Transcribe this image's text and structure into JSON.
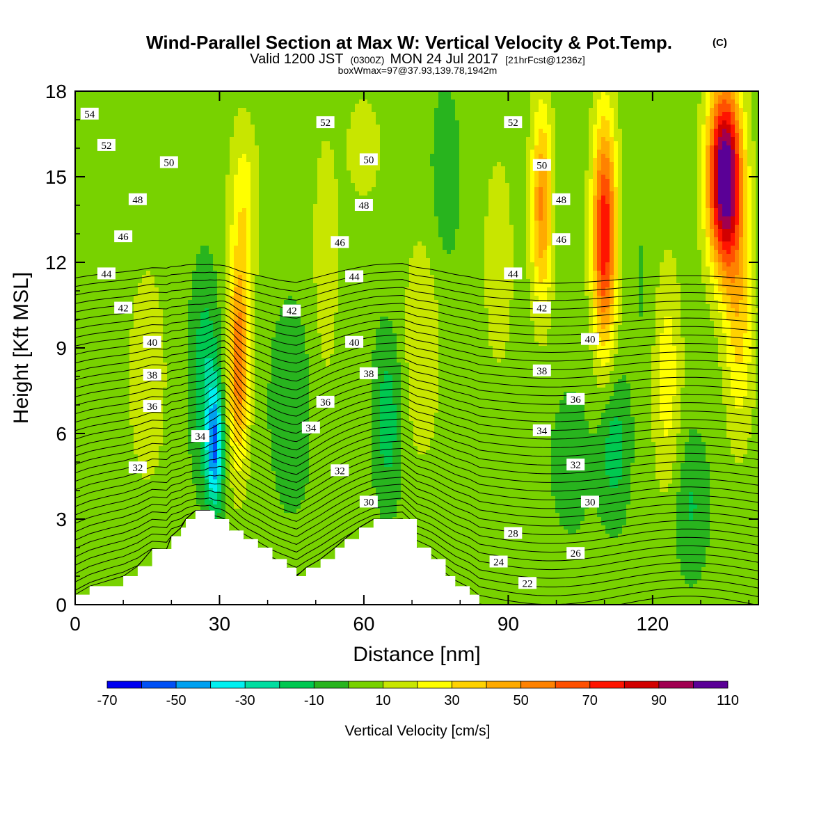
{
  "chart": {
    "title": "Wind-Parallel Section at Max W: Vertical Velocity & Pot.Temp.",
    "title_mark": "(C)",
    "subtitle": {
      "valid": "Valid 1200 JST",
      "utc": "(0300Z)",
      "date": "MON 24 Jul 2017",
      "forecast": "[21hrFcst@1236z]"
    },
    "box_info": "boxWmax=97@37.93,139.78,1942m"
  },
  "chart_data": {
    "type": "heatmap",
    "xlabel": "Distance [nm]",
    "ylabel": "Height [Kft MSL]",
    "xlim": [
      0,
      142
    ],
    "ylim": [
      0,
      18
    ],
    "x_ticks": [
      "0",
      "30",
      "60",
      "90",
      "120"
    ],
    "y_ticks": [
      "0",
      "3",
      "6",
      "9",
      "12",
      "15",
      "18"
    ],
    "colorbar": {
      "title": "Vertical Velocity [cm/s]",
      "levels": [
        -70,
        -60,
        -50,
        -40,
        -30,
        -20,
        -10,
        0,
        10,
        20,
        30,
        40,
        50,
        60,
        70,
        80,
        90,
        100,
        110
      ],
      "tick_labels": [
        "-70",
        "-50",
        "-30",
        "-10",
        "10",
        "30",
        "50",
        "70",
        "90",
        "110"
      ],
      "colors": [
        "#0000f0",
        "#0050f5",
        "#00a0f0",
        "#00f0f0",
        "#00dda0",
        "#00c850",
        "#28b41e",
        "#78d200",
        "#c8e600",
        "#ffff00",
        "#ffd200",
        "#ffaa00",
        "#ff8200",
        "#ff5000",
        "#ff1400",
        "#d20000",
        "#a00050",
        "#5a0096"
      ]
    },
    "terrain": [
      {
        "x": 0,
        "h": 0.35
      },
      {
        "x": 3,
        "h": 0.65
      },
      {
        "x": 10,
        "h": 1.0
      },
      {
        "x": 13,
        "h": 1.35
      },
      {
        "x": 16,
        "h": 1.95
      },
      {
        "x": 19,
        "h": 1.95
      },
      {
        "x": 20,
        "h": 2.4
      },
      {
        "x": 22,
        "h": 2.7
      },
      {
        "x": 23,
        "h": 3.0
      },
      {
        "x": 25,
        "h": 3.3
      },
      {
        "x": 28,
        "h": 3.3
      },
      {
        "x": 29,
        "h": 3.0
      },
      {
        "x": 32,
        "h": 2.6
      },
      {
        "x": 35,
        "h": 2.3
      },
      {
        "x": 38,
        "h": 2.0
      },
      {
        "x": 41,
        "h": 1.6
      },
      {
        "x": 44,
        "h": 1.3
      },
      {
        "x": 46,
        "h": 1.0
      },
      {
        "x": 48,
        "h": 1.3
      },
      {
        "x": 51,
        "h": 1.6
      },
      {
        "x": 54,
        "h": 2.0
      },
      {
        "x": 56,
        "h": 2.3
      },
      {
        "x": 59,
        "h": 2.7
      },
      {
        "x": 62,
        "h": 3.0
      },
      {
        "x": 68,
        "h": 3.0
      },
      {
        "x": 71,
        "h": 2.0
      },
      {
        "x": 74,
        "h": 1.6
      },
      {
        "x": 77,
        "h": 1.0
      },
      {
        "x": 79,
        "h": 0.65
      },
      {
        "x": 82,
        "h": 0.35
      },
      {
        "x": 84,
        "h": 0.0
      },
      {
        "x": 142,
        "h": 0.0
      }
    ],
    "w_field": [
      {
        "x": 15,
        "y": 8.0,
        "w": 14,
        "sx": 4,
        "sy": 4
      },
      {
        "x": 27,
        "y": 8.0,
        "w": -22,
        "sx": 3,
        "sy": 3.5
      },
      {
        "x": 29,
        "y": 5.5,
        "w": -50,
        "sx": 1.8,
        "sy": 2.2
      },
      {
        "x": 34,
        "y": 8.5,
        "w": 55,
        "sx": 2.2,
        "sy": 3.5
      },
      {
        "x": 35,
        "y": 14.0,
        "w": 22,
        "sx": 3,
        "sy": 3
      },
      {
        "x": 45,
        "y": 7.0,
        "w": -10,
        "sx": 5,
        "sy": 4
      },
      {
        "x": 52,
        "y": 12.0,
        "w": 12,
        "sx": 3,
        "sy": 5
      },
      {
        "x": 60,
        "y": 16.0,
        "w": 12,
        "sx": 4,
        "sy": 2
      },
      {
        "x": 65,
        "y": 6.5,
        "w": -20,
        "sx": 3,
        "sy": 3
      },
      {
        "x": 72,
        "y": 9.0,
        "w": 15,
        "sx": 4,
        "sy": 4
      },
      {
        "x": 77,
        "y": 15.0,
        "w": -12,
        "sx": 3,
        "sy": 3
      },
      {
        "x": 88,
        "y": 12.0,
        "w": 10,
        "sx": 4,
        "sy": 5
      },
      {
        "x": 97,
        "y": 14.0,
        "w": 48,
        "sx": 2.2,
        "sy": 3.5
      },
      {
        "x": 103,
        "y": 5.0,
        "w": -8,
        "sx": 5,
        "sy": 3
      },
      {
        "x": 110,
        "y": 13.0,
        "w": 75,
        "sx": 2.5,
        "sy": 4
      },
      {
        "x": 112,
        "y": 5.5,
        "w": -20,
        "sx": 3,
        "sy": 2.5
      },
      {
        "x": 118,
        "y": 11.0,
        "w": -5,
        "sx": 3,
        "sy": 4
      },
      {
        "x": 123,
        "y": 8.0,
        "w": 22,
        "sx": 3,
        "sy": 4
      },
      {
        "x": 128,
        "y": 3.5,
        "w": -15,
        "sx": 3.5,
        "sy": 2.5
      },
      {
        "x": 135,
        "y": 15.0,
        "w": 112,
        "sx": 3.5,
        "sy": 3.2
      },
      {
        "x": 138,
        "y": 10.0,
        "w": 30,
        "sx": 3,
        "sy": 4
      }
    ],
    "theta_labels": [
      {
        "text": "54",
        "x": 3,
        "y": 17.2
      },
      {
        "text": "52",
        "x": 6.5,
        "y": 16.1
      },
      {
        "text": "50",
        "x": 19.5,
        "y": 15.5
      },
      {
        "text": "48",
        "x": 13,
        "y": 14.2
      },
      {
        "text": "46",
        "x": 10,
        "y": 12.9
      },
      {
        "text": "44",
        "x": 6.5,
        "y": 11.6
      },
      {
        "text": "42",
        "x": 10,
        "y": 10.4
      },
      {
        "text": "40",
        "x": 16,
        "y": 9.2
      },
      {
        "text": "38",
        "x": 16,
        "y": 8.05
      },
      {
        "text": "36",
        "x": 16,
        "y": 6.95
      },
      {
        "text": "34",
        "x": 26,
        "y": 5.9
      },
      {
        "text": "32",
        "x": 13,
        "y": 4.8
      },
      {
        "text": "52",
        "x": 52,
        "y": 16.9
      },
      {
        "text": "50",
        "x": 61,
        "y": 15.6
      },
      {
        "text": "48",
        "x": 60,
        "y": 14.0
      },
      {
        "text": "46",
        "x": 55,
        "y": 12.7
      },
      {
        "text": "44",
        "x": 58,
        "y": 11.5
      },
      {
        "text": "42",
        "x": 45,
        "y": 10.3
      },
      {
        "text": "40",
        "x": 58,
        "y": 9.2
      },
      {
        "text": "38",
        "x": 61,
        "y": 8.1
      },
      {
        "text": "36",
        "x": 52,
        "y": 7.1
      },
      {
        "text": "34",
        "x": 49,
        "y": 6.2
      },
      {
        "text": "32",
        "x": 55,
        "y": 4.7
      },
      {
        "text": "30",
        "x": 61,
        "y": 3.6
      },
      {
        "text": "52",
        "x": 91,
        "y": 16.9
      },
      {
        "text": "50",
        "x": 97,
        "y": 15.4
      },
      {
        "text": "48",
        "x": 101,
        "y": 14.2
      },
      {
        "text": "46",
        "x": 101,
        "y": 12.8
      },
      {
        "text": "44",
        "x": 91,
        "y": 11.6
      },
      {
        "text": "42",
        "x": 97,
        "y": 10.4
      },
      {
        "text": "40",
        "x": 107,
        "y": 9.3
      },
      {
        "text": "38",
        "x": 97,
        "y": 8.2
      },
      {
        "text": "36",
        "x": 104,
        "y": 7.2
      },
      {
        "text": "34",
        "x": 97,
        "y": 6.1
      },
      {
        "text": "32",
        "x": 104,
        "y": 4.9
      },
      {
        "text": "30",
        "x": 107,
        "y": 3.6
      },
      {
        "text": "28",
        "x": 91,
        "y": 2.5
      },
      {
        "text": "26",
        "x": 104,
        "y": 1.8
      },
      {
        "text": "24",
        "x": 88,
        "y": 1.5
      },
      {
        "text": "22",
        "x": 94,
        "y": 0.75
      }
    ]
  }
}
